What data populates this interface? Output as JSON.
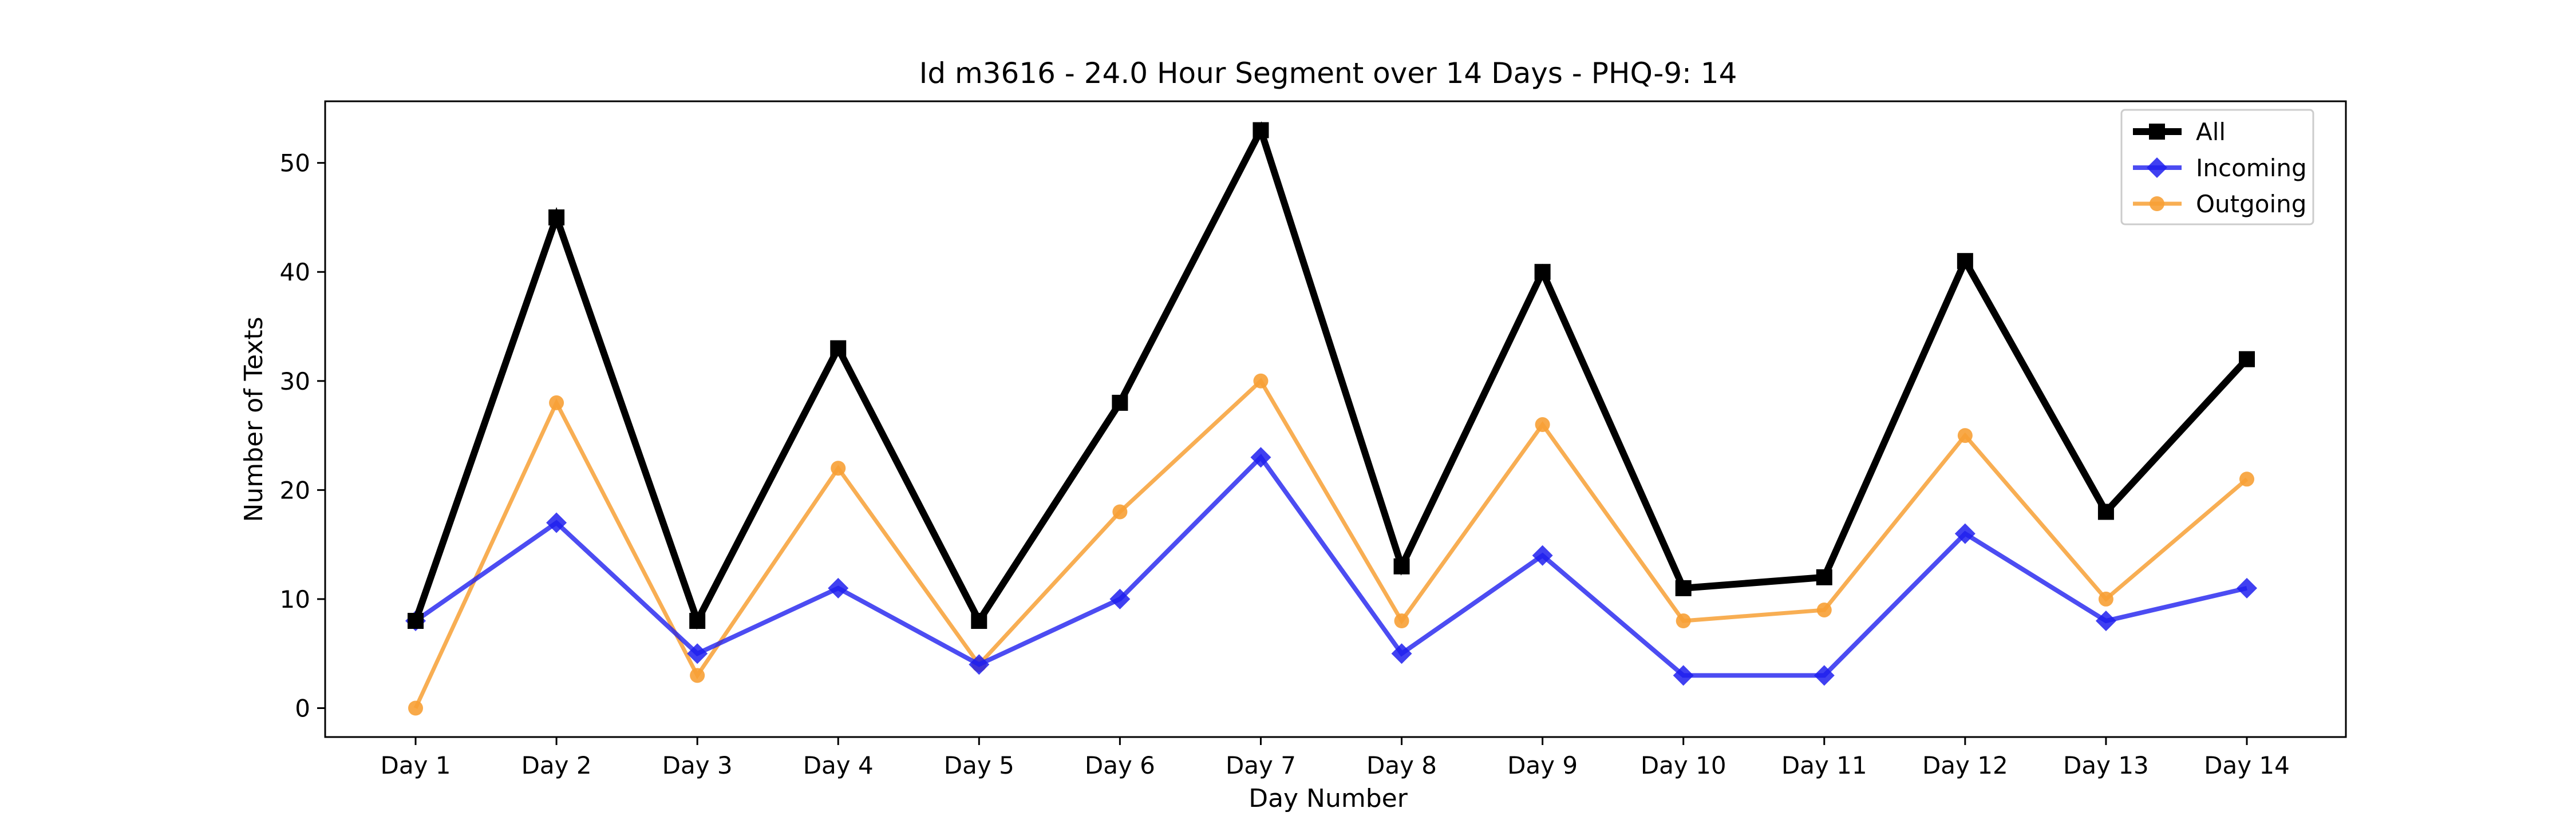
{
  "chart_data": {
    "type": "line",
    "title": "Id m3616 - 24.0 Hour Segment over 14 Days - PHQ-9: 14",
    "xlabel": "Day Number",
    "ylabel": "Number of Texts",
    "categories": [
      "Day 1",
      "Day 2",
      "Day 3",
      "Day 4",
      "Day 5",
      "Day 6",
      "Day 7",
      "Day 8",
      "Day 9",
      "Day 10",
      "Day 11",
      "Day 12",
      "Day 13",
      "Day 14"
    ],
    "yticks": [
      0,
      10,
      20,
      30,
      40,
      50
    ],
    "ylim": [
      -2.65,
      55.65
    ],
    "grid": false,
    "legend_position": "top-right",
    "series": [
      {
        "name": "All",
        "color": "#000000",
        "marker": "square",
        "values": [
          8,
          45,
          8,
          33,
          8,
          28,
          53,
          13,
          40,
          11,
          12,
          41,
          18,
          32
        ]
      },
      {
        "name": "Incoming",
        "color": "#1f1fef",
        "marker": "diamond",
        "values": [
          8,
          17,
          5,
          11,
          4,
          10,
          23,
          5,
          14,
          3,
          3,
          16,
          8,
          11
        ]
      },
      {
        "name": "Outgoing",
        "color": "#f7a035",
        "marker": "circle",
        "values": [
          0,
          28,
          3,
          22,
          4,
          18,
          30,
          8,
          26,
          8,
          9,
          25,
          10,
          21
        ]
      }
    ]
  }
}
